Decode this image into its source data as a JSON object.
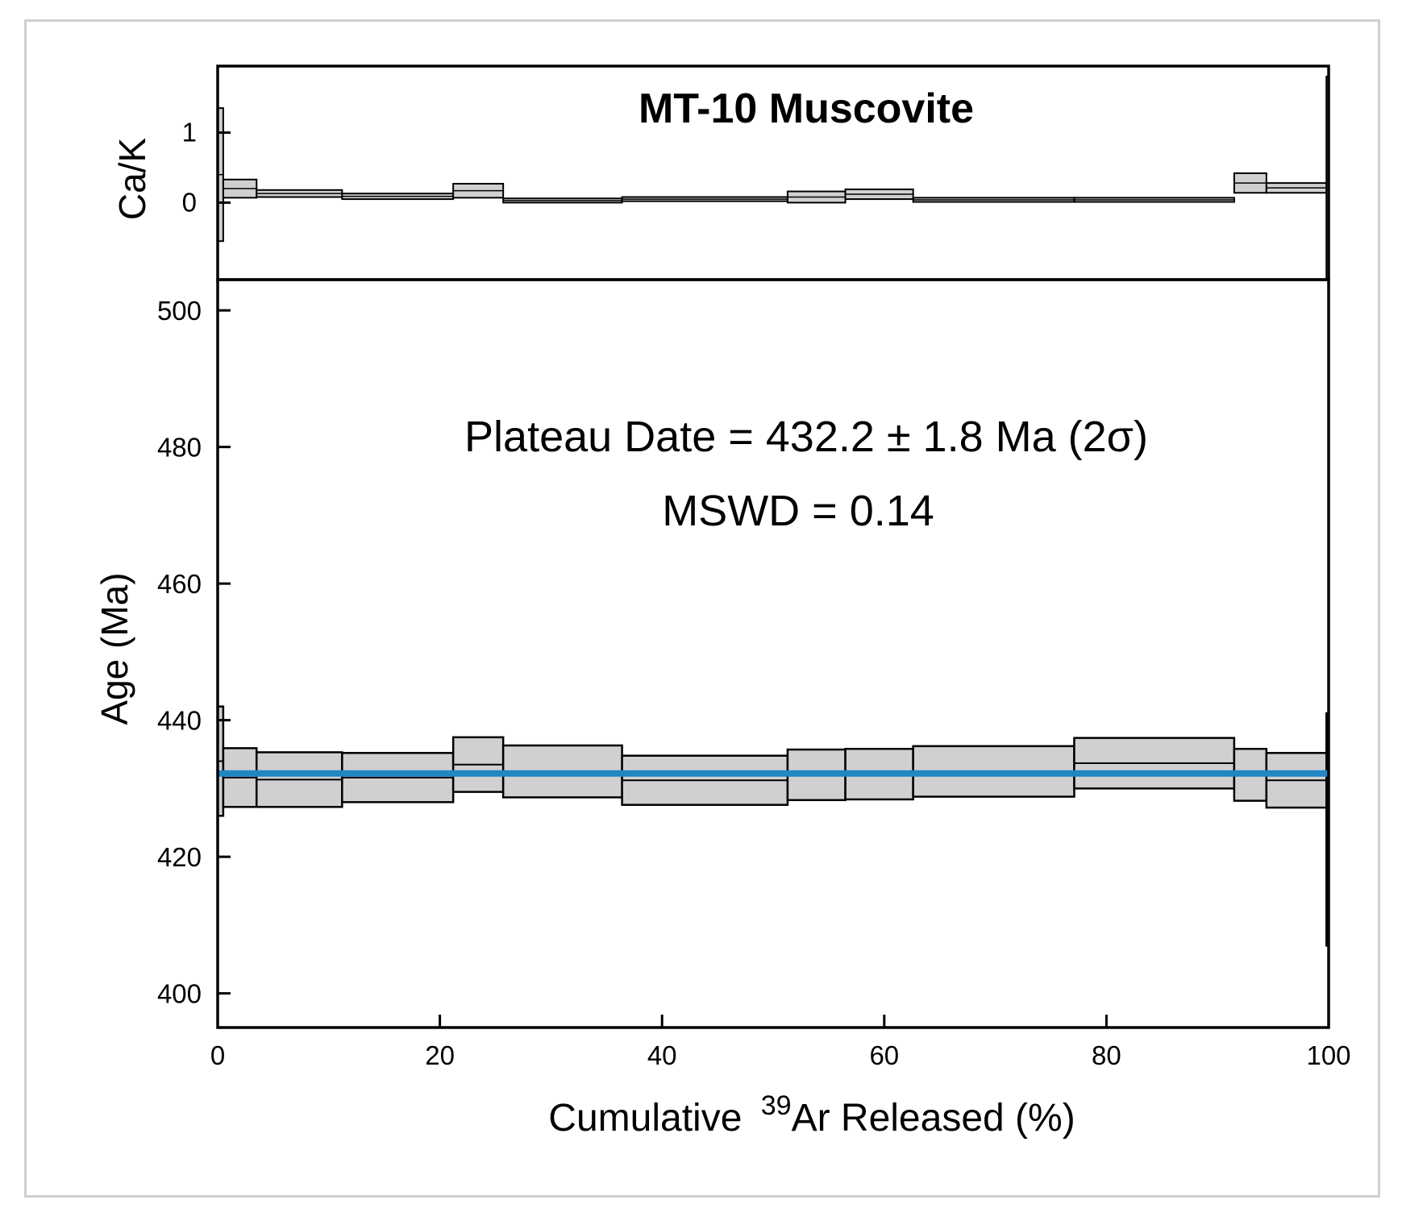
{
  "chart_data": {
    "type": "step-heating-spectrum",
    "title": "MT-10 Muscovite",
    "xlabel": "Cumulative",
    "xlabel_superscript": "39",
    "xlabel_suffix": "Ar Released (%)",
    "xlim": [
      0,
      100
    ],
    "x_ticks": [
      "0",
      "20",
      "40",
      "60",
      "80",
      "100"
    ],
    "x_tick_values": [
      0,
      20,
      40,
      60,
      80,
      100
    ],
    "cak_panel": {
      "ylabel": "Ca/K",
      "ylim": [
        -1.1,
        1.95
      ],
      "y_ticks": [
        "1",
        "0"
      ],
      "y_tick_values": [
        1,
        0
      ],
      "steps": [
        {
          "x0": 0.0,
          "x1": 0.5,
          "value": 0.4,
          "error": 0.95
        },
        {
          "x0": 0.5,
          "x1": 3.5,
          "value": 0.2,
          "error": 0.13
        },
        {
          "x0": 3.5,
          "x1": 11.2,
          "value": 0.13,
          "error": 0.05
        },
        {
          "x0": 11.2,
          "x1": 21.2,
          "value": 0.09,
          "error": 0.04
        },
        {
          "x0": 21.2,
          "x1": 25.7,
          "value": 0.17,
          "error": 0.1
        },
        {
          "x0": 25.7,
          "x1": 36.4,
          "value": 0.03,
          "error": 0.03
        },
        {
          "x0": 36.4,
          "x1": 51.3,
          "value": 0.05,
          "error": 0.03
        },
        {
          "x0": 51.3,
          "x1": 56.5,
          "value": 0.08,
          "error": 0.08
        },
        {
          "x0": 56.5,
          "x1": 62.6,
          "value": 0.12,
          "error": 0.07
        },
        {
          "x0": 62.6,
          "x1": 77.1,
          "value": 0.04,
          "error": 0.03
        },
        {
          "x0": 77.1,
          "x1": 91.5,
          "value": 0.04,
          "error": 0.03
        },
        {
          "x0": 91.5,
          "x1": 94.4,
          "value": 0.28,
          "error": 0.14
        },
        {
          "x0": 94.4,
          "x1": 99.8,
          "value": 0.21,
          "error": 0.07
        },
        {
          "x0": 99.8,
          "x1": 100.0,
          "value": 0.3,
          "error": 1.5
        }
      ]
    },
    "age_panel": {
      "ylabel": "Age (Ma)",
      "ylim": [
        395,
        504.5
      ],
      "y_ticks": [
        "500",
        "480",
        "460",
        "440",
        "420",
        "400"
      ],
      "y_tick_values": [
        500,
        480,
        460,
        440,
        420,
        400
      ],
      "steps": [
        {
          "x0": 0.0,
          "x1": 0.5,
          "age": 434.0,
          "error": 8.0
        },
        {
          "x0": 0.5,
          "x1": 3.5,
          "age": 431.6,
          "error": 4.3
        },
        {
          "x0": 3.5,
          "x1": 11.2,
          "age": 431.3,
          "error": 4.0
        },
        {
          "x0": 11.2,
          "x1": 21.2,
          "age": 431.6,
          "error": 3.6
        },
        {
          "x0": 21.2,
          "x1": 25.7,
          "age": 433.5,
          "error": 4.0
        },
        {
          "x0": 25.7,
          "x1": 36.4,
          "age": 432.5,
          "error": 3.8
        },
        {
          "x0": 36.4,
          "x1": 51.3,
          "age": 431.2,
          "error": 3.6
        },
        {
          "x0": 51.3,
          "x1": 56.5,
          "age": 432.0,
          "error": 3.7
        },
        {
          "x0": 56.5,
          "x1": 62.6,
          "age": 432.1,
          "error": 3.7
        },
        {
          "x0": 62.6,
          "x1": 77.1,
          "age": 432.5,
          "error": 3.7
        },
        {
          "x0": 77.1,
          "x1": 91.5,
          "age": 433.7,
          "error": 3.7
        },
        {
          "x0": 91.5,
          "x1": 94.4,
          "age": 432.0,
          "error": 3.8
        },
        {
          "x0": 94.4,
          "x1": 99.8,
          "age": 431.2,
          "error": 4.0
        },
        {
          "x0": 99.8,
          "x1": 100.0,
          "age": 424.0,
          "error": 17.0
        }
      ]
    },
    "plateau": {
      "age": 432.2,
      "x0": 0,
      "x1": 100,
      "color": "#1f87c4",
      "label": "Plateau Date = 432.2 ± 1.8 Ma (2σ)",
      "mswd_label": "MSWD = 0.14"
    },
    "colors": {
      "step_fill": "#d0d0d0",
      "step_edge": "#000000",
      "frame": "#cfcfcf"
    }
  }
}
